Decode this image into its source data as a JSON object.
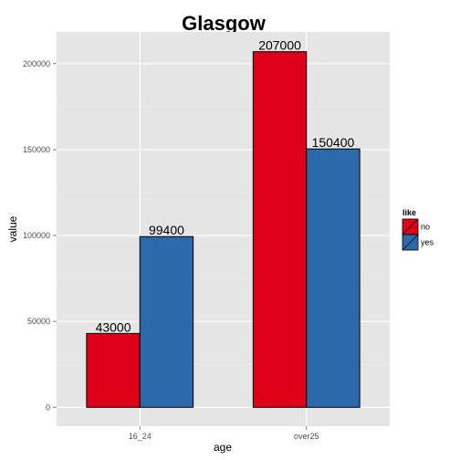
{
  "chart_data": {
    "type": "bar",
    "title": "Glasgow",
    "xlabel": "age",
    "ylabel": "value",
    "categories": [
      "16_24",
      "over25"
    ],
    "series": [
      {
        "name": "no",
        "values": [
          43000,
          207000
        ]
      },
      {
        "name": "yes",
        "values": [
          99400,
          150400
        ]
      }
    ],
    "data_labels": [
      [
        "43000",
        "207000"
      ],
      [
        "99400",
        "150400"
      ]
    ],
    "ylim": [
      -11000,
      218500
    ],
    "yticks": [
      0,
      50000,
      100000,
      150000,
      200000
    ],
    "ytick_labels": [
      "0",
      "50000",
      "100000",
      "150000",
      "200000"
    ],
    "grid": true,
    "legend": {
      "title": "like",
      "position": "right"
    },
    "colors": {
      "no": "#de0019",
      "yes": "#2c69aa",
      "panel_background": "#e5e5e5",
      "grid_major": "#ffffff",
      "grid_minor": "#f2f2f2"
    }
  }
}
